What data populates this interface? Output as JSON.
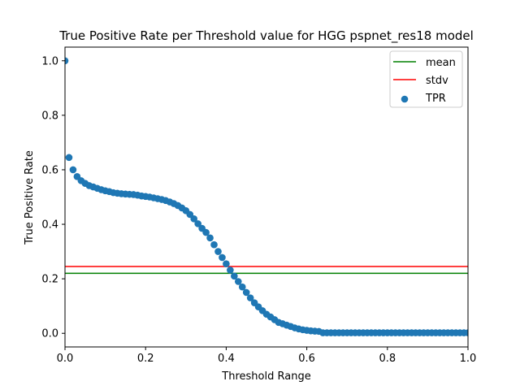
{
  "chart_data": {
    "type": "scatter",
    "title": "True Positive Rate per Threshold value for HGG pspnet_res18 model",
    "xlabel": "Threshold Range",
    "ylabel": "True Positive Rate",
    "xlim": [
      0,
      1
    ],
    "ylim": [
      -0.05,
      1.05
    ],
    "xticks": [
      "0.0",
      "0.2",
      "0.4",
      "0.6",
      "0.8",
      "1.0"
    ],
    "yticks": [
      "0.0",
      "0.2",
      "0.4",
      "0.6",
      "0.8",
      "1.0"
    ],
    "grid": false,
    "legend_position": "top-right",
    "legend": [
      "mean",
      "stdv",
      "TPR"
    ],
    "series": [
      {
        "name": "TPR",
        "kind": "scatter",
        "color": "#1f77b4",
        "x": [
          0.0,
          0.01,
          0.02,
          0.03,
          0.04,
          0.05,
          0.06,
          0.07,
          0.08,
          0.09,
          0.1,
          0.11,
          0.12,
          0.13,
          0.14,
          0.15,
          0.16,
          0.17,
          0.18,
          0.19,
          0.2,
          0.21,
          0.22,
          0.23,
          0.24,
          0.25,
          0.26,
          0.27,
          0.28,
          0.29,
          0.3,
          0.31,
          0.32,
          0.33,
          0.34,
          0.35,
          0.36,
          0.37,
          0.38,
          0.39,
          0.4,
          0.41,
          0.42,
          0.43,
          0.44,
          0.45,
          0.46,
          0.47,
          0.48,
          0.49,
          0.5,
          0.51,
          0.52,
          0.53,
          0.54,
          0.55,
          0.56,
          0.57,
          0.58,
          0.59,
          0.6,
          0.61,
          0.62,
          0.63,
          0.64,
          0.65,
          0.66,
          0.67,
          0.68,
          0.69,
          0.7,
          0.71,
          0.72,
          0.73,
          0.74,
          0.75,
          0.76,
          0.77,
          0.78,
          0.79,
          0.8,
          0.81,
          0.82,
          0.83,
          0.84,
          0.85,
          0.86,
          0.87,
          0.88,
          0.89,
          0.9,
          0.91,
          0.92,
          0.93,
          0.94,
          0.95,
          0.96,
          0.97,
          0.98,
          0.99,
          1.0
        ],
        "y": [
          1.0,
          0.645,
          0.6,
          0.575,
          0.56,
          0.55,
          0.542,
          0.537,
          0.532,
          0.527,
          0.523,
          0.52,
          0.516,
          0.514,
          0.512,
          0.511,
          0.51,
          0.509,
          0.507,
          0.504,
          0.502,
          0.5,
          0.497,
          0.494,
          0.491,
          0.487,
          0.482,
          0.476,
          0.469,
          0.46,
          0.45,
          0.436,
          0.42,
          0.402,
          0.385,
          0.37,
          0.35,
          0.325,
          0.3,
          0.278,
          0.255,
          0.232,
          0.21,
          0.19,
          0.17,
          0.15,
          0.13,
          0.112,
          0.097,
          0.083,
          0.07,
          0.06,
          0.05,
          0.04,
          0.035,
          0.03,
          0.025,
          0.02,
          0.016,
          0.013,
          0.011,
          0.009,
          0.008,
          0.007,
          0.002,
          0.002,
          0.002,
          0.002,
          0.002,
          0.002,
          0.002,
          0.002,
          0.002,
          0.002,
          0.002,
          0.002,
          0.002,
          0.002,
          0.002,
          0.002,
          0.002,
          0.002,
          0.002,
          0.002,
          0.002,
          0.002,
          0.002,
          0.002,
          0.002,
          0.002,
          0.002,
          0.002,
          0.002,
          0.002,
          0.002,
          0.002,
          0.002,
          0.002,
          0.002,
          0.002,
          0.002
        ]
      },
      {
        "name": "mean",
        "kind": "hline",
        "color": "#008000",
        "y": 0.22
      },
      {
        "name": "stdv",
        "kind": "hline",
        "color": "#ff0000",
        "y": 0.245
      }
    ]
  }
}
